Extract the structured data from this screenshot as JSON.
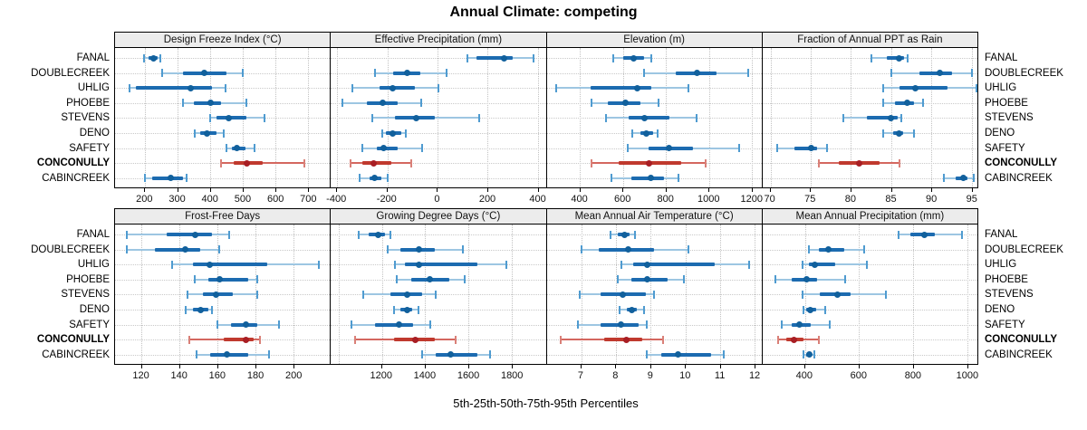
{
  "title": "Annual Climate: competing",
  "xlabel": "5th-25th-50th-75th-95th Percentiles",
  "sites": [
    "FANAL",
    "DOUBLECREEK",
    "UHLIG",
    "PHOEBE",
    "STEVENS",
    "DENO",
    "SAFETY",
    "CONCONULLY",
    "CABINCREEK"
  ],
  "highlight_site": "CONCONULLY",
  "colors": {
    "blue_line": "#9dc6e2",
    "blue_cap": "#4f9bd0",
    "blue_bar": "#1c6bb0",
    "blue_dot": "#11609c",
    "red_line": "#d4675f",
    "red_cap": "#d98078",
    "red_bar": "#c0392e",
    "red_dot": "#a81e24",
    "strip_bg": "#ececec",
    "grid": "#c2c2c2",
    "border": "#000000"
  },
  "chart_data": {
    "type": "dotplot-percentiles",
    "percentiles": [
      "5th",
      "25th",
      "50th",
      "75th",
      "95th"
    ],
    "legend_note": "one row per site; whisker 5th-95th, thick bar 25th-75th, dot = median; CONCONULLY highlighted red",
    "panels": [
      {
        "title": "Design Freeze Index (°C)",
        "xlim": [
          108,
          766
        ],
        "ticks": [
          200,
          300,
          400,
          500,
          600,
          700
        ],
        "values": [
          [
            196,
            210,
            225,
            237,
            246
          ],
          [
            252,
            315,
            380,
            450,
            498
          ],
          [
            151,
            172,
            340,
            405,
            447
          ],
          [
            315,
            350,
            400,
            432,
            510
          ],
          [
            398,
            420,
            455,
            510,
            565
          ],
          [
            352,
            368,
            390,
            420,
            442
          ],
          [
            448,
            465,
            482,
            507,
            536
          ],
          [
            432,
            470,
            512,
            560,
            688
          ],
          [
            200,
            222,
            278,
            315,
            326
          ]
        ]
      },
      {
        "title": "Effective Precipitation (mm)",
        "xlim": [
          -425,
          432
        ],
        "ticks": [
          -400,
          -200,
          0,
          200,
          400
        ],
        "values": [
          [
            120,
            155,
            265,
            300,
            385
          ],
          [
            -250,
            -175,
            -120,
            -70,
            35
          ],
          [
            -340,
            -230,
            -180,
            -90,
            5
          ],
          [
            -380,
            -280,
            -220,
            -160,
            -65
          ],
          [
            -260,
            -170,
            -85,
            -10,
            165
          ],
          [
            -220,
            -205,
            -180,
            -145,
            -125
          ],
          [
            -300,
            -240,
            -215,
            -160,
            -60
          ],
          [
            -345,
            -300,
            -255,
            -185,
            -105
          ],
          [
            -310,
            -270,
            -250,
            -225,
            -200
          ]
        ]
      },
      {
        "title": "Elevation (m)",
        "xlim": [
          244,
          1246
        ],
        "ticks": [
          400,
          600,
          800,
          1000,
          1200
        ],
        "values": [
          [
            555,
            600,
            650,
            700,
            730
          ],
          [
            700,
            845,
            945,
            1035,
            1185
          ],
          [
            290,
            450,
            665,
            730,
            905
          ],
          [
            455,
            530,
            610,
            680,
            765
          ],
          [
            520,
            625,
            700,
            815,
            945
          ],
          [
            645,
            680,
            710,
            740,
            760
          ],
          [
            620,
            720,
            815,
            925,
            1140
          ],
          [
            455,
            580,
            720,
            870,
            985
          ],
          [
            545,
            640,
            730,
            790,
            860
          ]
        ]
      },
      {
        "title": "Fraction of Annual PPT as Rain",
        "xlim": [
          69,
          95.7
        ],
        "ticks": [
          70,
          75,
          80,
          85,
          90,
          95
        ],
        "values": [
          [
            82.5,
            84.5,
            86,
            86.6,
            87
          ],
          [
            85,
            88.5,
            91,
            92.5,
            95
          ],
          [
            84,
            86,
            88,
            92,
            95.6
          ],
          [
            84,
            85.5,
            87,
            87.8,
            89
          ],
          [
            79,
            82,
            85,
            85.8,
            86.2
          ],
          [
            84,
            85.2,
            86,
            86.5,
            87.8
          ],
          [
            70.8,
            73,
            75,
            75.8,
            77
          ],
          [
            76,
            78.5,
            81,
            83.5,
            86
          ],
          [
            91.5,
            93,
            94,
            94.5,
            95.3
          ]
        ]
      },
      {
        "title": "Frost-Free Days",
        "xlim": [
          106,
          219
        ],
        "ticks": [
          120,
          140,
          160,
          180,
          200
        ],
        "values": [
          [
            112,
            133,
            148,
            157,
            166
          ],
          [
            112,
            127,
            143,
            151,
            161
          ],
          [
            136,
            147,
            156,
            186,
            213
          ],
          [
            148,
            155,
            161,
            176,
            181
          ],
          [
            144,
            152,
            159,
            168,
            181
          ],
          [
            143,
            147,
            151,
            155,
            157
          ],
          [
            160,
            167,
            175,
            181,
            192
          ],
          [
            145,
            163,
            175,
            179,
            182
          ],
          [
            149,
            156,
            165,
            176,
            187
          ]
        ]
      },
      {
        "title": "Growing Degree Days (°C)",
        "xlim": [
          965,
          1955
        ],
        "ticks": [
          1200,
          1400,
          1600,
          1800
        ],
        "grid": [
          1000,
          1200,
          1400,
          1600,
          1800
        ],
        "values": [
          [
            1095,
            1140,
            1185,
            1215,
            1240
          ],
          [
            1225,
            1285,
            1370,
            1445,
            1575
          ],
          [
            1260,
            1305,
            1370,
            1640,
            1775
          ],
          [
            1270,
            1335,
            1420,
            1510,
            1580
          ],
          [
            1115,
            1240,
            1315,
            1385,
            1450
          ],
          [
            1255,
            1285,
            1315,
            1340,
            1370
          ],
          [
            1060,
            1170,
            1280,
            1345,
            1425
          ],
          [
            1075,
            1255,
            1355,
            1445,
            1540
          ],
          [
            1385,
            1450,
            1515,
            1640,
            1700
          ]
        ]
      },
      {
        "title": "Mean Annual Air Temperature (°C)",
        "xlim": [
          6.0,
          12.2
        ],
        "ticks": [
          7,
          8,
          9,
          10,
          11,
          12
        ],
        "values": [
          [
            7.85,
            8.05,
            8.25,
            8.4,
            8.55
          ],
          [
            7.0,
            7.5,
            8.35,
            9.1,
            10.1
          ],
          [
            8.15,
            8.5,
            8.9,
            10.85,
            11.85
          ],
          [
            8.05,
            8.45,
            8.9,
            9.5,
            9.95
          ],
          [
            6.95,
            7.55,
            8.2,
            8.85,
            9.1
          ],
          [
            8.1,
            8.3,
            8.45,
            8.6,
            8.8
          ],
          [
            6.9,
            7.55,
            8.15,
            8.65,
            8.9
          ],
          [
            6.4,
            7.65,
            8.3,
            8.75,
            9.35
          ],
          [
            8.9,
            9.3,
            9.8,
            10.75,
            11.1
          ]
        ]
      },
      {
        "title": "Mean Annual Precipitation (mm)",
        "xlim": [
          243,
          1037
        ],
        "ticks": [
          400,
          600,
          800,
          1000
        ],
        "values": [
          [
            745,
            790,
            840,
            880,
            980
          ],
          [
            415,
            450,
            485,
            545,
            620
          ],
          [
            390,
            415,
            435,
            510,
            630
          ],
          [
            290,
            350,
            405,
            445,
            550
          ],
          [
            390,
            455,
            520,
            570,
            700
          ],
          [
            395,
            405,
            420,
            440,
            475
          ],
          [
            315,
            350,
            380,
            420,
            490
          ],
          [
            300,
            330,
            360,
            395,
            450
          ],
          [
            395,
            405,
            415,
            425,
            435
          ]
        ]
      }
    ]
  }
}
